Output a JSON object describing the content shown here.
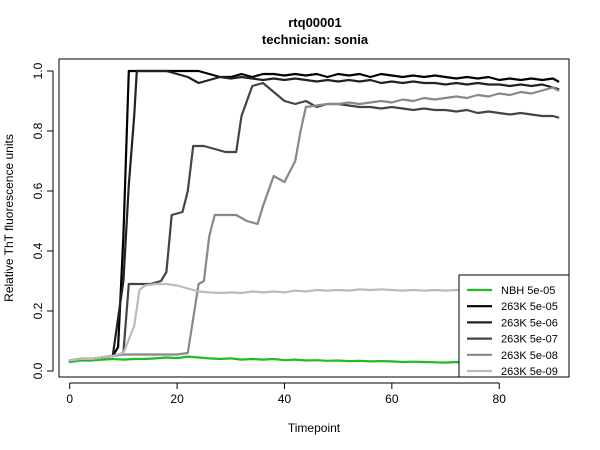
{
  "chart_data": {
    "type": "line",
    "title": "rtq00001",
    "subtitle": "technician: sonia",
    "xlabel": "Timepoint",
    "ylabel": "Relative ThT fluorescence units",
    "xlim": [
      -2,
      93
    ],
    "ylim": [
      -0.02,
      1.04
    ],
    "xticks": [
      0,
      20,
      40,
      60,
      80
    ],
    "yticks": [
      0.0,
      0.2,
      0.4,
      0.6,
      0.8,
      1.0
    ],
    "grid": false,
    "legend_position": "bottom-right",
    "series": [
      {
        "name": "NBH 5e-05",
        "color": "#22bb22",
        "points": [
          [
            0,
            0.03
          ],
          [
            2,
            0.035
          ],
          [
            4,
            0.035
          ],
          [
            6,
            0.038
          ],
          [
            8,
            0.04
          ],
          [
            10,
            0.038
          ],
          [
            12,
            0.04
          ],
          [
            14,
            0.04
          ],
          [
            16,
            0.042
          ],
          [
            18,
            0.045
          ],
          [
            20,
            0.043
          ],
          [
            22,
            0.048
          ],
          [
            24,
            0.045
          ],
          [
            26,
            0.042
          ],
          [
            28,
            0.04
          ],
          [
            30,
            0.042
          ],
          [
            32,
            0.038
          ],
          [
            34,
            0.04
          ],
          [
            36,
            0.038
          ],
          [
            38,
            0.04
          ],
          [
            40,
            0.036
          ],
          [
            42,
            0.038
          ],
          [
            44,
            0.035
          ],
          [
            46,
            0.036
          ],
          [
            48,
            0.034
          ],
          [
            50,
            0.035
          ],
          [
            52,
            0.033
          ],
          [
            54,
            0.034
          ],
          [
            56,
            0.032
          ],
          [
            58,
            0.033
          ],
          [
            60,
            0.032
          ],
          [
            62,
            0.03
          ],
          [
            64,
            0.031
          ],
          [
            66,
            0.03
          ],
          [
            68,
            0.029
          ],
          [
            70,
            0.028
          ],
          [
            72,
            0.03
          ],
          [
            74,
            0.028
          ],
          [
            76,
            0.027
          ],
          [
            78,
            0.028
          ],
          [
            80,
            0.026
          ],
          [
            82,
            0.027
          ],
          [
            84,
            0.025
          ],
          [
            86,
            0.026
          ],
          [
            88,
            0.025
          ],
          [
            90,
            0.025
          ]
        ]
      },
      {
        "name": "263K 5e-05",
        "color": "#000000",
        "points": [
          [
            0,
            0.035
          ],
          [
            2,
            0.04
          ],
          [
            4,
            0.04
          ],
          [
            6,
            0.045
          ],
          [
            8,
            0.05
          ],
          [
            9,
            0.08
          ],
          [
            10,
            0.45
          ],
          [
            11,
            1.0
          ],
          [
            12,
            1.0
          ],
          [
            14,
            1.0
          ],
          [
            16,
            1.0
          ],
          [
            18,
            1.0
          ],
          [
            20,
            1.0
          ],
          [
            22,
            1.0
          ],
          [
            24,
            1.0
          ],
          [
            26,
            0.99
          ],
          [
            28,
            0.98
          ],
          [
            30,
            0.98
          ],
          [
            32,
            0.99
          ],
          [
            34,
            0.98
          ],
          [
            36,
            0.99
          ],
          [
            38,
            0.99
          ],
          [
            40,
            0.985
          ],
          [
            42,
            0.99
          ],
          [
            44,
            0.985
          ],
          [
            46,
            0.99
          ],
          [
            48,
            0.98
          ],
          [
            50,
            0.99
          ],
          [
            52,
            0.985
          ],
          [
            54,
            0.99
          ],
          [
            56,
            0.98
          ],
          [
            58,
            0.99
          ],
          [
            60,
            0.985
          ],
          [
            62,
            0.98
          ],
          [
            64,
            0.985
          ],
          [
            66,
            0.98
          ],
          [
            68,
            0.985
          ],
          [
            70,
            0.98
          ],
          [
            72,
            0.975
          ],
          [
            74,
            0.98
          ],
          [
            76,
            0.975
          ],
          [
            78,
            0.98
          ],
          [
            80,
            0.97
          ],
          [
            82,
            0.975
          ],
          [
            84,
            0.97
          ],
          [
            86,
            0.975
          ],
          [
            88,
            0.97
          ],
          [
            90,
            0.975
          ],
          [
            91,
            0.965
          ]
        ]
      },
      {
        "name": "263K 5e-06",
        "color": "#222222",
        "points": [
          [
            0,
            0.035
          ],
          [
            2,
            0.04
          ],
          [
            4,
            0.04
          ],
          [
            6,
            0.045
          ],
          [
            8,
            0.05
          ],
          [
            10,
            0.3
          ],
          [
            11,
            0.62
          ],
          [
            12,
            0.85
          ],
          [
            12.5,
            1.0
          ],
          [
            14,
            1.0
          ],
          [
            16,
            1.0
          ],
          [
            18,
            1.0
          ],
          [
            20,
            0.99
          ],
          [
            22,
            0.98
          ],
          [
            24,
            0.96
          ],
          [
            26,
            0.97
          ],
          [
            28,
            0.98
          ],
          [
            30,
            0.975
          ],
          [
            32,
            0.98
          ],
          [
            34,
            0.975
          ],
          [
            36,
            0.97
          ],
          [
            38,
            0.975
          ],
          [
            40,
            0.97
          ],
          [
            42,
            0.975
          ],
          [
            44,
            0.97
          ],
          [
            46,
            0.965
          ],
          [
            48,
            0.97
          ],
          [
            50,
            0.965
          ],
          [
            52,
            0.97
          ],
          [
            54,
            0.965
          ],
          [
            56,
            0.97
          ],
          [
            58,
            0.96
          ],
          [
            60,
            0.965
          ],
          [
            62,
            0.96
          ],
          [
            64,
            0.965
          ],
          [
            66,
            0.96
          ],
          [
            68,
            0.96
          ],
          [
            70,
            0.955
          ],
          [
            72,
            0.96
          ],
          [
            74,
            0.955
          ],
          [
            76,
            0.96
          ],
          [
            78,
            0.955
          ],
          [
            80,
            0.955
          ],
          [
            82,
            0.95
          ],
          [
            84,
            0.955
          ],
          [
            86,
            0.95
          ],
          [
            88,
            0.955
          ],
          [
            90,
            0.945
          ],
          [
            91,
            0.94
          ]
        ]
      },
      {
        "name": "263K 5e-07",
        "color": "#444444",
        "points": [
          [
            0,
            0.035
          ],
          [
            2,
            0.04
          ],
          [
            4,
            0.04
          ],
          [
            6,
            0.045
          ],
          [
            8,
            0.05
          ],
          [
            10,
            0.06
          ],
          [
            11,
            0.29
          ],
          [
            13,
            0.29
          ],
          [
            15,
            0.29
          ],
          [
            17,
            0.3
          ],
          [
            18,
            0.33
          ],
          [
            19,
            0.52
          ],
          [
            21,
            0.53
          ],
          [
            22,
            0.6
          ],
          [
            23,
            0.75
          ],
          [
            25,
            0.75
          ],
          [
            27,
            0.74
          ],
          [
            29,
            0.73
          ],
          [
            31,
            0.73
          ],
          [
            32,
            0.85
          ],
          [
            34,
            0.95
          ],
          [
            36,
            0.96
          ],
          [
            38,
            0.93
          ],
          [
            40,
            0.9
          ],
          [
            42,
            0.89
          ],
          [
            44,
            0.9
          ],
          [
            46,
            0.88
          ],
          [
            48,
            0.89
          ],
          [
            50,
            0.89
          ],
          [
            52,
            0.885
          ],
          [
            54,
            0.88
          ],
          [
            56,
            0.88
          ],
          [
            58,
            0.875
          ],
          [
            60,
            0.88
          ],
          [
            62,
            0.875
          ],
          [
            64,
            0.87
          ],
          [
            66,
            0.875
          ],
          [
            68,
            0.87
          ],
          [
            70,
            0.87
          ],
          [
            72,
            0.865
          ],
          [
            74,
            0.87
          ],
          [
            76,
            0.86
          ],
          [
            78,
            0.865
          ],
          [
            80,
            0.86
          ],
          [
            82,
            0.855
          ],
          [
            84,
            0.86
          ],
          [
            86,
            0.855
          ],
          [
            88,
            0.85
          ],
          [
            90,
            0.85
          ],
          [
            91,
            0.845
          ]
        ]
      },
      {
        "name": "263K 5e-08",
        "color": "#888888",
        "points": [
          [
            0,
            0.035
          ],
          [
            2,
            0.04
          ],
          [
            4,
            0.04
          ],
          [
            6,
            0.045
          ],
          [
            8,
            0.05
          ],
          [
            10,
            0.055
          ],
          [
            12,
            0.055
          ],
          [
            14,
            0.055
          ],
          [
            16,
            0.055
          ],
          [
            18,
            0.055
          ],
          [
            20,
            0.055
          ],
          [
            22,
            0.06
          ],
          [
            24,
            0.29
          ],
          [
            25,
            0.3
          ],
          [
            26,
            0.45
          ],
          [
            27,
            0.52
          ],
          [
            29,
            0.52
          ],
          [
            31,
            0.52
          ],
          [
            33,
            0.5
          ],
          [
            35,
            0.49
          ],
          [
            36,
            0.55
          ],
          [
            38,
            0.65
          ],
          [
            40,
            0.63
          ],
          [
            42,
            0.7
          ],
          [
            43,
            0.8
          ],
          [
            44,
            0.88
          ],
          [
            46,
            0.885
          ],
          [
            48,
            0.89
          ],
          [
            50,
            0.89
          ],
          [
            52,
            0.895
          ],
          [
            54,
            0.89
          ],
          [
            56,
            0.895
          ],
          [
            58,
            0.9
          ],
          [
            60,
            0.895
          ],
          [
            62,
            0.905
          ],
          [
            64,
            0.9
          ],
          [
            66,
            0.91
          ],
          [
            68,
            0.905
          ],
          [
            70,
            0.91
          ],
          [
            72,
            0.915
          ],
          [
            74,
            0.91
          ],
          [
            76,
            0.92
          ],
          [
            78,
            0.915
          ],
          [
            80,
            0.925
          ],
          [
            82,
            0.92
          ],
          [
            84,
            0.93
          ],
          [
            86,
            0.925
          ],
          [
            88,
            0.935
          ],
          [
            90,
            0.945
          ],
          [
            91,
            0.935
          ]
        ]
      },
      {
        "name": "263K 5e-09",
        "color": "#bbbbbb",
        "points": [
          [
            0,
            0.035
          ],
          [
            2,
            0.04
          ],
          [
            4,
            0.04
          ],
          [
            6,
            0.045
          ],
          [
            8,
            0.05
          ],
          [
            10,
            0.06
          ],
          [
            12,
            0.15
          ],
          [
            13,
            0.27
          ],
          [
            14,
            0.285
          ],
          [
            16,
            0.29
          ],
          [
            18,
            0.29
          ],
          [
            20,
            0.285
          ],
          [
            22,
            0.275
          ],
          [
            24,
            0.265
          ],
          [
            26,
            0.262
          ],
          [
            28,
            0.26
          ],
          [
            30,
            0.262
          ],
          [
            32,
            0.26
          ],
          [
            34,
            0.265
          ],
          [
            36,
            0.262
          ],
          [
            38,
            0.265
          ],
          [
            40,
            0.262
          ],
          [
            42,
            0.268
          ],
          [
            44,
            0.265
          ],
          [
            46,
            0.27
          ],
          [
            48,
            0.268
          ],
          [
            50,
            0.27
          ],
          [
            52,
            0.268
          ],
          [
            54,
            0.272
          ],
          [
            56,
            0.27
          ],
          [
            58,
            0.272
          ],
          [
            60,
            0.27
          ],
          [
            62,
            0.268
          ],
          [
            64,
            0.27
          ],
          [
            66,
            0.268
          ],
          [
            68,
            0.27
          ],
          [
            70,
            0.268
          ],
          [
            72,
            0.27
          ],
          [
            74,
            0.268
          ],
          [
            76,
            0.27
          ],
          [
            78,
            0.268
          ],
          [
            80,
            0.27
          ],
          [
            82,
            0.268
          ],
          [
            84,
            0.27
          ],
          [
            86,
            0.268
          ],
          [
            88,
            0.27
          ],
          [
            90,
            0.268
          ]
        ]
      }
    ]
  }
}
